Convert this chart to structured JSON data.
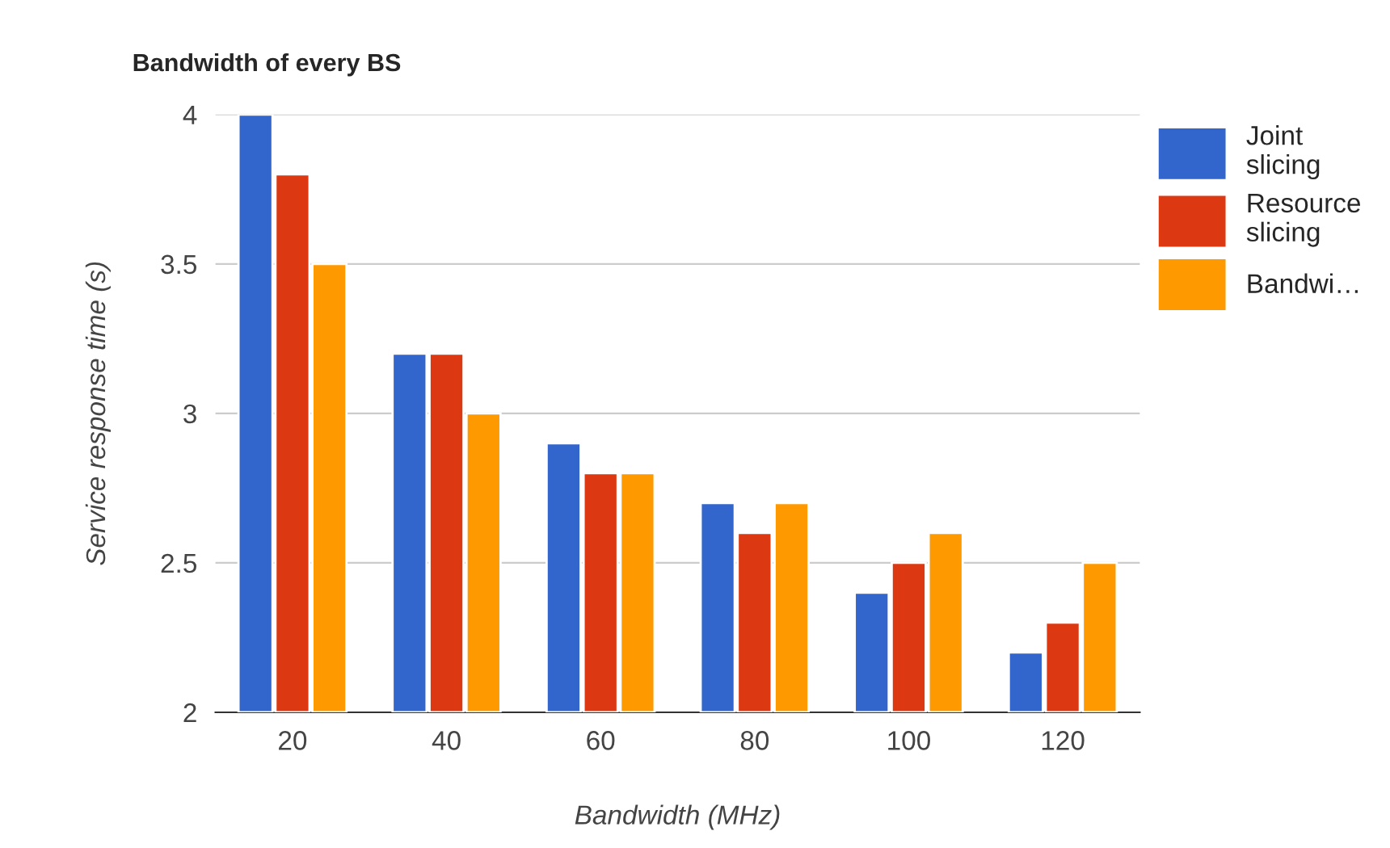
{
  "chart_data": {
    "type": "bar",
    "title": "Bandwidth of every BS",
    "xlabel": "Bandwidth (MHz)",
    "ylabel": "Service response time (s)",
    "categories": [
      "20",
      "40",
      "60",
      "80",
      "100",
      "120"
    ],
    "series": [
      {
        "name": "Joint slicing",
        "color": "#3366cc",
        "values": [
          4.0,
          3.2,
          2.9,
          2.7,
          2.4,
          2.2
        ]
      },
      {
        "name": "Resource slicing",
        "color": "#dc3912",
        "values": [
          3.8,
          3.2,
          2.8,
          2.6,
          2.5,
          2.3
        ]
      },
      {
        "name": "Bandwi…",
        "color": "#ff9900",
        "values": [
          3.5,
          3.0,
          2.8,
          2.7,
          2.6,
          2.5
        ]
      }
    ],
    "ylim": [
      2,
      4
    ],
    "yticks": [
      2,
      2.5,
      3,
      3.5,
      4
    ],
    "grid": "y",
    "legend": "right"
  }
}
